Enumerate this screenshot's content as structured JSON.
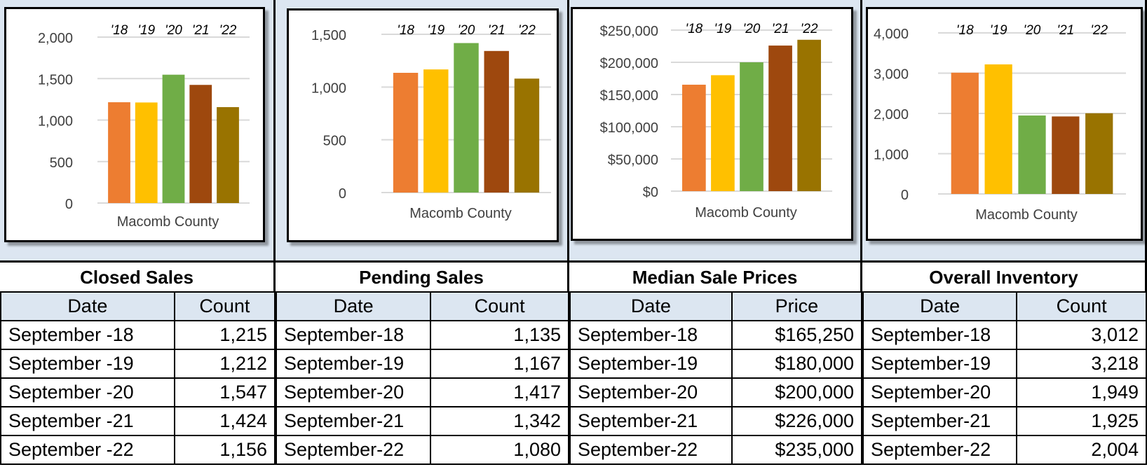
{
  "colors": [
    "#ed7d31",
    "#ffc000",
    "#70ad47",
    "#9e480e",
    "#997300"
  ],
  "chart_data": [
    {
      "type": "bar",
      "title": "Closed Sales",
      "categories": [
        "'18",
        "'19",
        "'20",
        "'21",
        "'22"
      ],
      "values": [
        1215,
        1212,
        1547,
        1424,
        1156
      ],
      "ylim": [
        0,
        2000
      ],
      "yticks": [
        "0",
        "500",
        "1,000",
        "1,500",
        "2,000"
      ],
      "ytick_values": [
        0,
        500,
        1000,
        1500,
        2000
      ],
      "xlabel": "Macomb County"
    },
    {
      "type": "bar",
      "title": "Pending Sales",
      "categories": [
        "'18",
        "'19",
        "'20",
        "'21",
        "'22"
      ],
      "values": [
        1135,
        1167,
        1417,
        1342,
        1080
      ],
      "ylim": [
        0,
        1500
      ],
      "yticks": [
        "0",
        "500",
        "1,000",
        "1,500"
      ],
      "ytick_values": [
        0,
        500,
        1000,
        1500
      ],
      "xlabel": "Macomb County"
    },
    {
      "type": "bar",
      "title": "Median Sale Prices",
      "categories": [
        "'18",
        "'19",
        "'20",
        "'21",
        "'22"
      ],
      "values": [
        165250,
        180000,
        200000,
        226000,
        235000
      ],
      "ylim": [
        0,
        250000
      ],
      "yticks": [
        "$0",
        "$50,000",
        "$100,000",
        "$150,000",
        "$200,000",
        "$250,000"
      ],
      "ytick_values": [
        0,
        50000,
        100000,
        150000,
        200000,
        250000
      ],
      "xlabel": "Macomb County"
    },
    {
      "type": "bar",
      "title": "Overall Inventory",
      "categories": [
        "'18",
        "'19",
        "'20",
        "'21",
        "'22"
      ],
      "values": [
        3012,
        3218,
        1949,
        1925,
        2004
      ],
      "ylim": [
        0,
        4000
      ],
      "yticks": [
        "0",
        "1,000",
        "2,000",
        "3,000",
        "4,000"
      ],
      "ytick_values": [
        0,
        1000,
        2000,
        3000,
        4000
      ],
      "xlabel": "Macomb County"
    }
  ],
  "tables": [
    {
      "title": "Closed Sales",
      "headers": [
        "Date",
        "Count"
      ],
      "rows": [
        [
          "September -18",
          "1,215"
        ],
        [
          "September -19",
          "1,212"
        ],
        [
          "September -20",
          "1,547"
        ],
        [
          "September -21",
          "1,424"
        ],
        [
          "September -22",
          "1,156"
        ]
      ]
    },
    {
      "title": "Pending Sales",
      "headers": [
        "Date",
        "Count"
      ],
      "rows": [
        [
          "September-18",
          "1,135"
        ],
        [
          "September-19",
          "1,167"
        ],
        [
          "September-20",
          "1,417"
        ],
        [
          "September-21",
          "1,342"
        ],
        [
          "September-22",
          "1,080"
        ]
      ]
    },
    {
      "title": "Median Sale Prices",
      "headers": [
        "Date",
        "Price"
      ],
      "rows": [
        [
          "September-18",
          "$165,250"
        ],
        [
          "September-19",
          "$180,000"
        ],
        [
          "September-20",
          "$200,000"
        ],
        [
          "September-21",
          "$226,000"
        ],
        [
          "September-22",
          "$235,000"
        ]
      ]
    },
    {
      "title": "Overall Inventory",
      "headers": [
        "Date",
        "Count"
      ],
      "rows": [
        [
          "September-18",
          "3,012"
        ],
        [
          "September-19",
          "3,218"
        ],
        [
          "September-20",
          "1,949"
        ],
        [
          "September-21",
          "1,925"
        ],
        [
          "September-22",
          "2,004"
        ]
      ]
    }
  ]
}
